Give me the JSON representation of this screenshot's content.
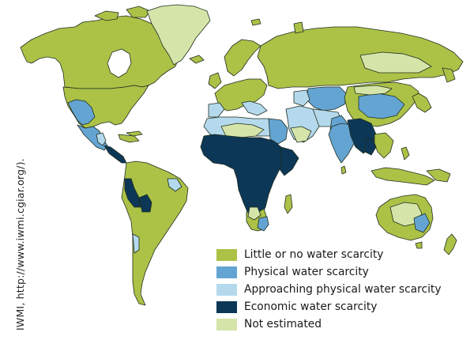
{
  "colors": {
    "little": "#abc247",
    "physical": "#64a4d2",
    "approaching": "#b5d9ec",
    "economic": "#0c3756",
    "not_estimated": "#d5e4a9",
    "border": "#1f2d1f",
    "background": "#ffffff"
  },
  "credit": "IWMI, http://www.iwmi.cgiar.org/).",
  "legend": [
    {
      "category": "little",
      "label": "Little or no water scarcity"
    },
    {
      "category": "physical",
      "label": "Physical water scarcity"
    },
    {
      "category": "approaching",
      "label": "Approaching physical water scarcity"
    },
    {
      "category": "economic",
      "label": "Economic water scarcity"
    },
    {
      "category": "not_estimated",
      "label": "Not estimated"
    }
  ]
}
